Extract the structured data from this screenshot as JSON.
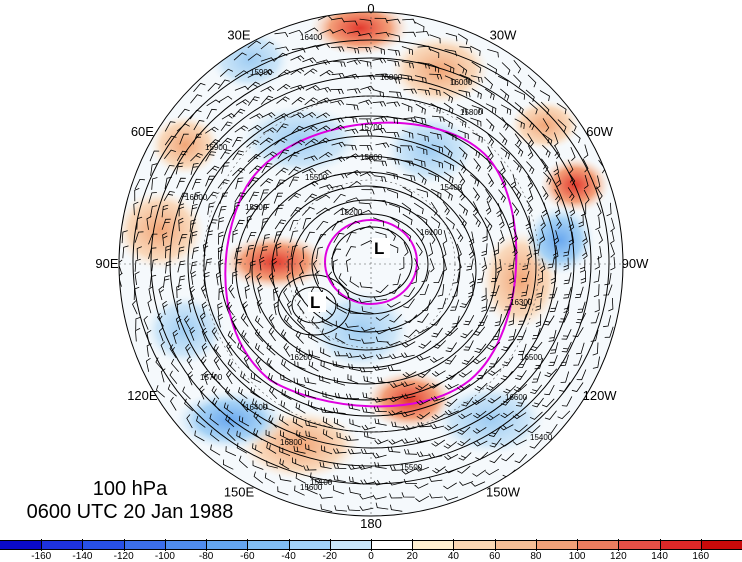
{
  "map": {
    "projection": "north-polar-stereographic",
    "longitude_labels": [
      {
        "text": "0",
        "angle": 0
      },
      {
        "text": "30W",
        "angle": 30
      },
      {
        "text": "60W",
        "angle": 60
      },
      {
        "text": "90W",
        "angle": 90
      },
      {
        "text": "120W",
        "angle": 120
      },
      {
        "text": "150W",
        "angle": 150
      },
      {
        "text": "180",
        "angle": 180
      },
      {
        "text": "150E",
        "angle": 210
      },
      {
        "text": "120E",
        "angle": 240
      },
      {
        "text": "90E",
        "angle": 270
      },
      {
        "text": "60E",
        "angle": 300
      },
      {
        "text": "30E",
        "angle": 330
      }
    ],
    "low_markers": [
      "L",
      "L"
    ],
    "contour_labels": [
      "16400",
      "16000",
      "15900",
      "15800",
      "15700",
      "15600",
      "15500",
      "15400",
      "15300",
      "15200",
      "16100",
      "16200",
      "16300",
      "16500",
      "16600",
      "16800",
      "15100"
    ],
    "colors": {
      "contour": "#000000",
      "magenta_contour": "#e000e0",
      "negative_strong": "#0000c8",
      "positive_strong": "#c80000"
    }
  },
  "caption": {
    "level": "100 hPa",
    "time": "0600 UTC 20 Jan 1988"
  },
  "colorbar": {
    "ticks": [
      "-160",
      "-140",
      "-120",
      "-100",
      "-80",
      "-60",
      "-40",
      "-20",
      "0",
      "20",
      "40",
      "60",
      "80",
      "100",
      "120",
      "140",
      "160"
    ],
    "colors": [
      "#0a0ac8",
      "#1e32dc",
      "#2850e6",
      "#3c6eea",
      "#508cee",
      "#64a5f0",
      "#82bef4",
      "#a0d2f8",
      "#c8e6fa",
      "#ffffff",
      "#fff0d2",
      "#fad7b4",
      "#f5be96",
      "#f0a078",
      "#eb7d5f",
      "#e65046",
      "#dc2828",
      "#c80a0a"
    ]
  }
}
